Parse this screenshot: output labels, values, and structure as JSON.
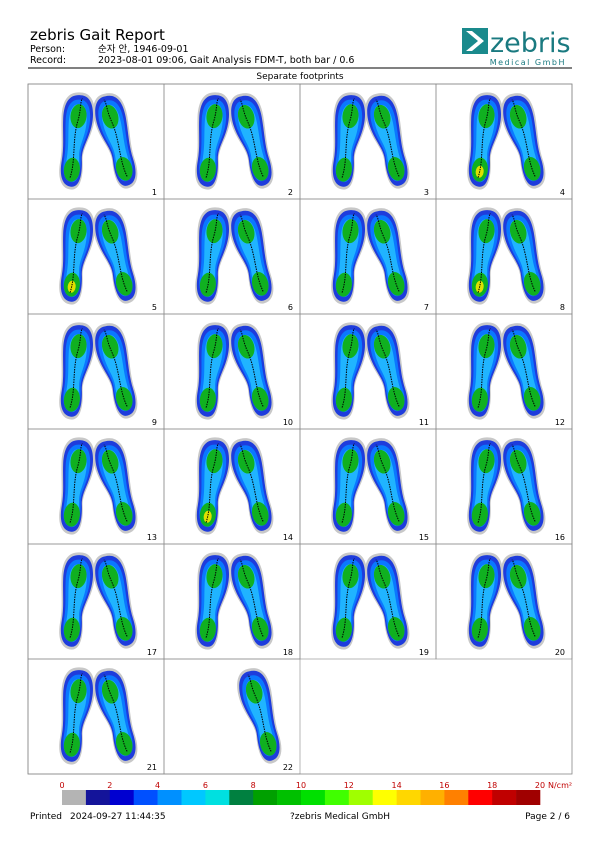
{
  "header": {
    "title": "zebris Gait Report",
    "person_label": "Person:",
    "person_value": "순자 안, 1946-09-01",
    "record_label": "Record:",
    "record_value": "2023-08-01 09:06, Gait Analysis FDM-T, both bar / 0.6",
    "logo": "zebris",
    "logo_sub": "Medical GmbH"
  },
  "section": {
    "title": "Separate footprints",
    "cells": [
      "1",
      "2",
      "3",
      "4",
      "5",
      "6",
      "7",
      "8",
      "9",
      "10",
      "11",
      "12",
      "13",
      "14",
      "15",
      "16",
      "17",
      "18",
      "19",
      "20",
      "21",
      "22"
    ]
  },
  "scale": {
    "ticks": [
      "0",
      "2",
      "4",
      "6",
      "8",
      "10",
      "12",
      "14",
      "16",
      "18",
      "20"
    ],
    "unit": "N/cm²",
    "colors": [
      "#b4b4b4",
      "#14149a",
      "#0000d0",
      "#0050ff",
      "#0090ff",
      "#00c8ff",
      "#00e0e0",
      "#008040",
      "#00a000",
      "#00c000",
      "#00e000",
      "#40ff00",
      "#a0ff00",
      "#ffff00",
      "#ffd700",
      "#ffb000",
      "#ff8000",
      "#ff0000",
      "#c00000",
      "#a00000"
    ]
  },
  "footer": {
    "printed_label": "Printed",
    "printed_value": "2024-09-27 11:44:35",
    "company": "?zebris Medical GmbH",
    "page": "Page 2 / 6"
  }
}
